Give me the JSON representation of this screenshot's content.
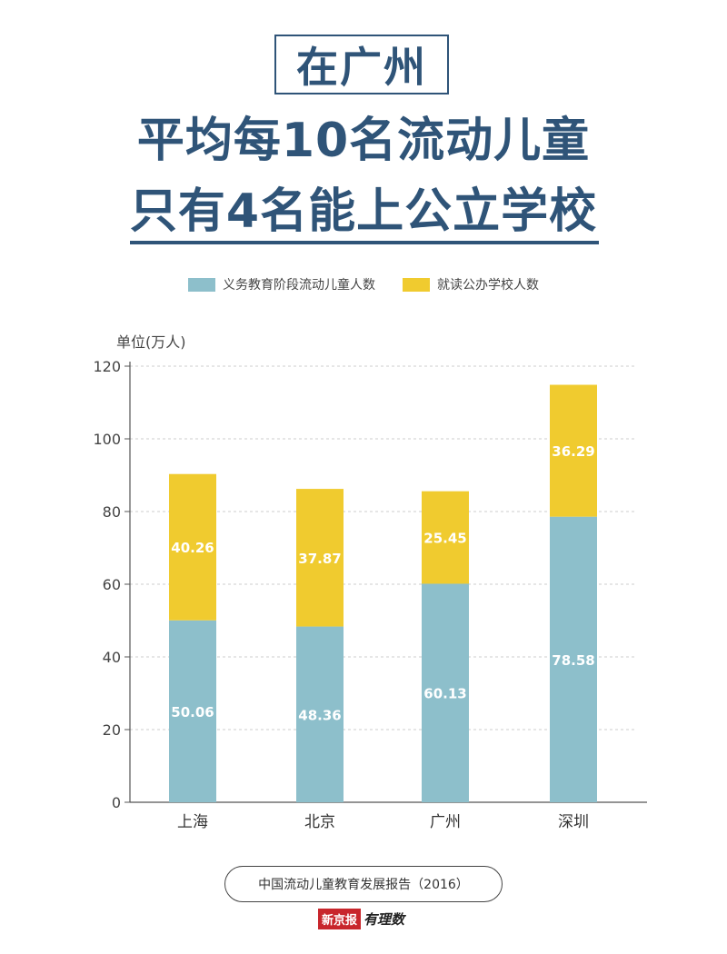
{
  "header": {
    "box_title": "在广州",
    "line1": "平均每10名流动儿童",
    "line2": "只有4名能上公立学校"
  },
  "colors": {
    "title": "#2f5478",
    "series_enrolled": "#8dbfcb",
    "series_public": "#f0cb2f",
    "grid": "#cccccc"
  },
  "chart_data": {
    "type": "bar",
    "stacked": true,
    "unit_label": "单位(万人)",
    "categories": [
      "上海",
      "北京",
      "广州",
      "深圳"
    ],
    "series": [
      {
        "name": "义务教育阶段流动儿童人数",
        "values": [
          50.06,
          48.36,
          60.13,
          78.58
        ]
      },
      {
        "name": "就读公办学校人数",
        "values": [
          40.26,
          37.87,
          25.45,
          36.29
        ]
      }
    ],
    "ylim": [
      0,
      120
    ],
    "yticks": [
      0,
      20,
      40,
      60,
      80,
      100,
      120
    ],
    "grid": true,
    "legend_position": "top-center"
  },
  "footer": {
    "source": "中国流动儿童教育发展报告（2016）",
    "logo_text": "新京报",
    "logo_script": "有理数"
  }
}
